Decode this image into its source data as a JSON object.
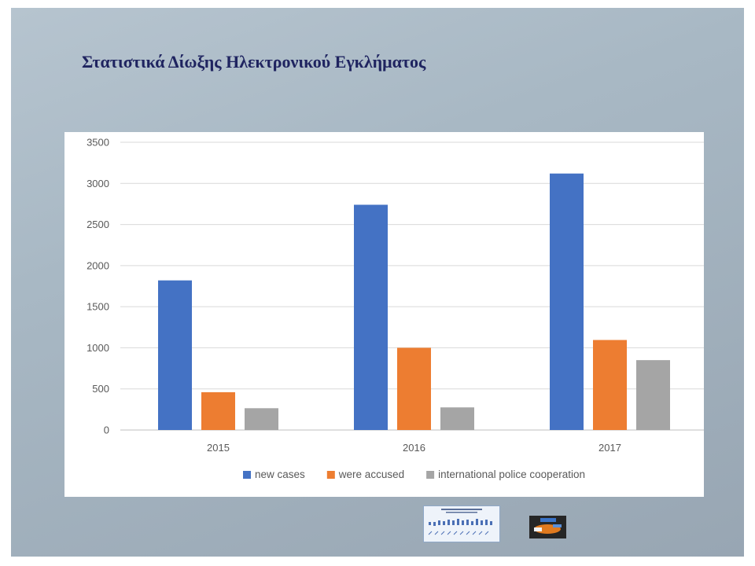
{
  "slide": {
    "title": "Στατιστικά Δίωξης Ηλεκτρονικού Εγκλήματος"
  },
  "chart_data": {
    "type": "bar",
    "categories": [
      "2015",
      "2016",
      "2017"
    ],
    "series": [
      {
        "name": "new cases",
        "values": [
          1820,
          2740,
          3120
        ],
        "color": "#4472c4"
      },
      {
        "name": "were accused",
        "values": [
          460,
          1000,
          1095
        ],
        "color": "#ed7d31"
      },
      {
        "name": "international police cooperation",
        "values": [
          265,
          275,
          850
        ],
        "color": "#a5a5a5"
      }
    ],
    "ylim": [
      0,
      3500
    ],
    "yticks": [
      0,
      500,
      1000,
      1500,
      2000,
      2500,
      3000,
      3500
    ],
    "title": "",
    "xlabel": "",
    "ylabel": "",
    "grid": true,
    "legend_position": "bottom"
  },
  "images": [
    {
      "name": "statistics-thumbnail",
      "description": "small bar chart thumbnail"
    },
    {
      "name": "logo-thumbnail",
      "description": "small dark logo image"
    }
  ]
}
